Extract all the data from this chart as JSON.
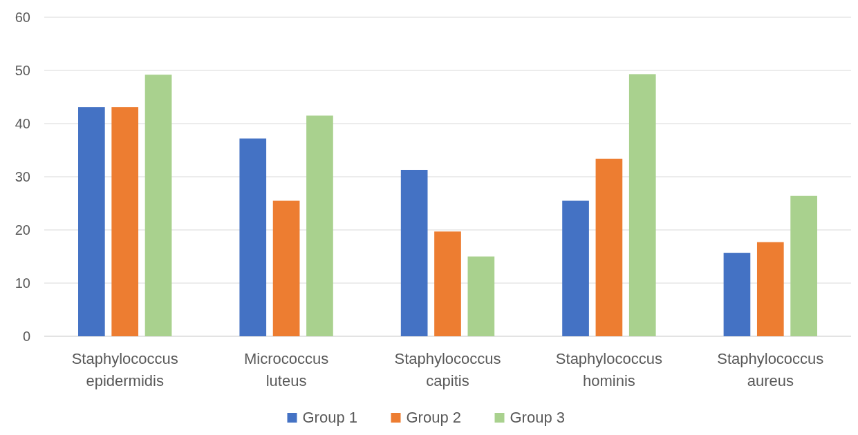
{
  "chart_data": {
    "type": "bar",
    "categories": [
      "Staphylococcus epidermidis",
      "Micrococcus luteus",
      "Staphylococcus capitis",
      "Staphylococcus hominis",
      "Staphylococcus aureus"
    ],
    "series": [
      {
        "name": "Group 1",
        "color": "#4472c4",
        "values": [
          43.1,
          37.2,
          31.3,
          25.5,
          15.7
        ]
      },
      {
        "name": "Group 2",
        "color": "#ed7d31",
        "values": [
          43.1,
          25.5,
          19.7,
          33.4,
          17.7
        ]
      },
      {
        "name": "Group 3",
        "color": "#a9d18e",
        "values": [
          49.2,
          41.5,
          15.0,
          49.3,
          26.4
        ]
      }
    ],
    "ylim": [
      0,
      60
    ],
    "yticks": [
      0,
      10,
      20,
      30,
      40,
      50,
      60
    ],
    "grid": "y",
    "legend": "bottom"
  }
}
